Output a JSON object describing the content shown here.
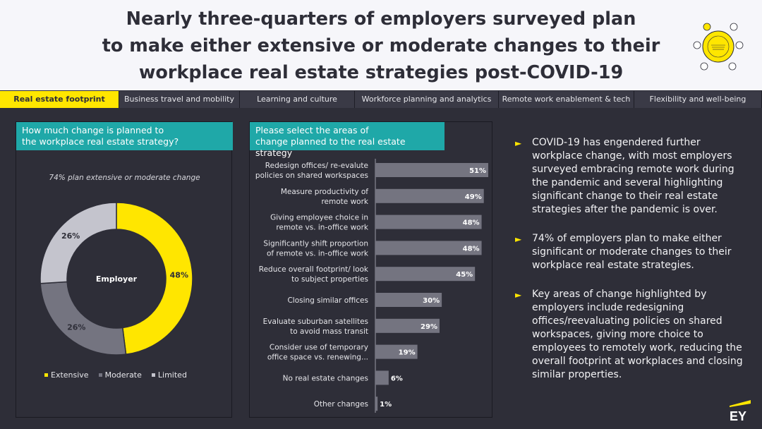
{
  "title_lines": [
    "Nearly three-quarters of employers surveyed plan",
    "to make either extensive or moderate changes to their",
    "workplace real estate strategies post-COVID-19"
  ],
  "tabs": [
    {
      "label": "Real estate footprint",
      "active": true
    },
    {
      "label": "Business travel and mobility",
      "active": false
    },
    {
      "label": "Learning and culture",
      "active": false
    },
    {
      "label": "Workforce planning and analytics",
      "active": false
    },
    {
      "label": "Remote work enablement & tech",
      "active": false
    },
    {
      "label": "Flexibility and well-being",
      "active": false
    }
  ],
  "colors": {
    "accent": "#ffe600",
    "teal": "#1fa8a8",
    "moderate": "#747480",
    "limited": "#c4c4cd",
    "background": "#2e2e38",
    "bar": "#747480"
  },
  "chart_data": [
    {
      "type": "pie",
      "title_lines": [
        "How much change is planned to",
        "the workplace real estate strategy?"
      ],
      "note": "74% plan extensive or moderate change",
      "center_label": "Employer",
      "categories": [
        "Extensive",
        "Moderate",
        "Limited"
      ],
      "values": [
        48,
        26,
        26
      ],
      "value_labels": [
        "48%",
        "26%",
        "26%"
      ],
      "legend_position": "bottom"
    },
    {
      "type": "bar",
      "orientation": "horizontal",
      "title_lines": [
        "Please select the areas of",
        "change planned to the real estate strategy"
      ],
      "categories": [
        [
          "Redesign offices/ re-evalute",
          "policies on shared workspaces"
        ],
        [
          "Measure productivity of",
          "remote work"
        ],
        [
          "Giving employee choice in",
          "remote vs. in-office work"
        ],
        [
          "Significantly shift proportion",
          "of remote vs. in-office work"
        ],
        [
          "Reduce overall footprint/ look",
          "to subject properties"
        ],
        [
          "Closing similar offices"
        ],
        [
          "Evaluate suburban satellites",
          "to avoid mass transit"
        ],
        [
          "Consider use of temporary",
          "office space vs. renewing..."
        ],
        [
          "No real estate changes"
        ],
        [
          "Other changes"
        ]
      ],
      "values": [
        51,
        49,
        48,
        48,
        45,
        30,
        29,
        19,
        6,
        1
      ],
      "value_labels": [
        "51%",
        "49%",
        "48%",
        "48%",
        "45%",
        "30%",
        "29%",
        "19%",
        "6%",
        "1%"
      ],
      "xlim": [
        0,
        51
      ]
    }
  ],
  "bullets": [
    "COVID-19 has engendered further workplace change, with most employers surveyed embracing remote work during the pandemic and several highlighting significant change to their real estate strategies after the pandemic is over.",
    "74% of employers plan to make either significant or moderate changes to their workplace real estate strategies.",
    "Key areas of change highlighted by employers include redesigning offices/reevaluating policies on shared workspaces, giving more choice to employees to remotely work, reducing the overall footprint at workplaces and closing similar properties."
  ],
  "bullet_marker": "►",
  "brand": "EY"
}
